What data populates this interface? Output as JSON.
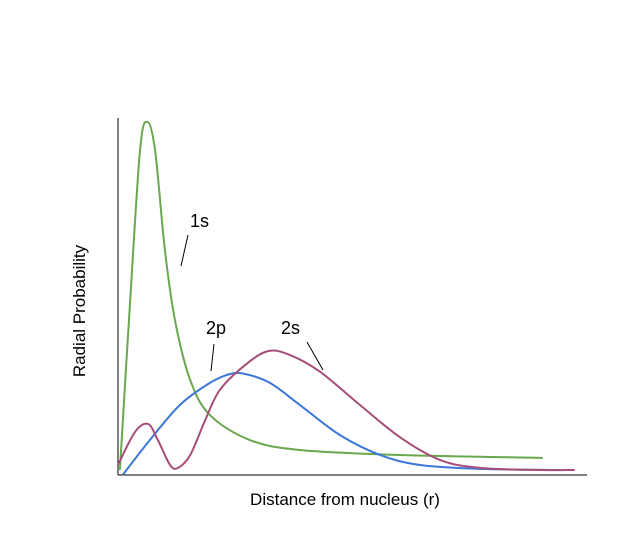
{
  "chart_data": {
    "type": "line",
    "title": "",
    "xlabel": "Distance from nucleus (r)",
    "ylabel": "Radial Probability",
    "xlim": [
      0,
      100
    ],
    "ylim": [
      0,
      100
    ],
    "grid": false,
    "ticks": false,
    "series": [
      {
        "name": "1s",
        "color": "#6aa84f",
        "x": [
          0.4,
          2.6,
          4.7,
          6.2,
          7.9,
          10,
          12.2,
          15.4,
          19.6,
          28.1,
          38.8,
          60.1,
          90.6
        ],
        "y": [
          1.4,
          49,
          91,
          98.9,
          91,
          63,
          43,
          26.6,
          16.8,
          9.8,
          7,
          5.6,
          4.8
        ]
      },
      {
        "name": "2p",
        "color": "#3c78d8",
        "x": [
          1,
          6.8,
          13.2,
          19.6,
          23.9,
          27.1,
          32.4,
          38.8,
          47.3,
          55.9,
          64.4,
          77.2,
          94.2
        ],
        "y": [
          0,
          9.8,
          19.6,
          25.8,
          28.3,
          28.3,
          25.8,
          19.6,
          11.2,
          5.6,
          2.8,
          1.7,
          1.4
        ]
      },
      {
        "name": "2s",
        "color": "#a64d79",
        "x": [
          0,
          3.6,
          6.4,
          8.5,
          11.1,
          12.8,
          15.4,
          18.6,
          21.7,
          27.1,
          32,
          36.7,
          43.1,
          51.6,
          60.1,
          68.7,
          77.2,
          90,
          97.4
        ],
        "y": [
          2.8,
          12,
          14.3,
          9.8,
          2.8,
          2,
          5.6,
          15.4,
          23.8,
          30.8,
          34.7,
          33.6,
          28.9,
          19.6,
          10.6,
          4.2,
          2,
          1.4,
          1.4
        ]
      }
    ],
    "annotations": [
      "1s",
      "2p",
      "2s"
    ]
  }
}
